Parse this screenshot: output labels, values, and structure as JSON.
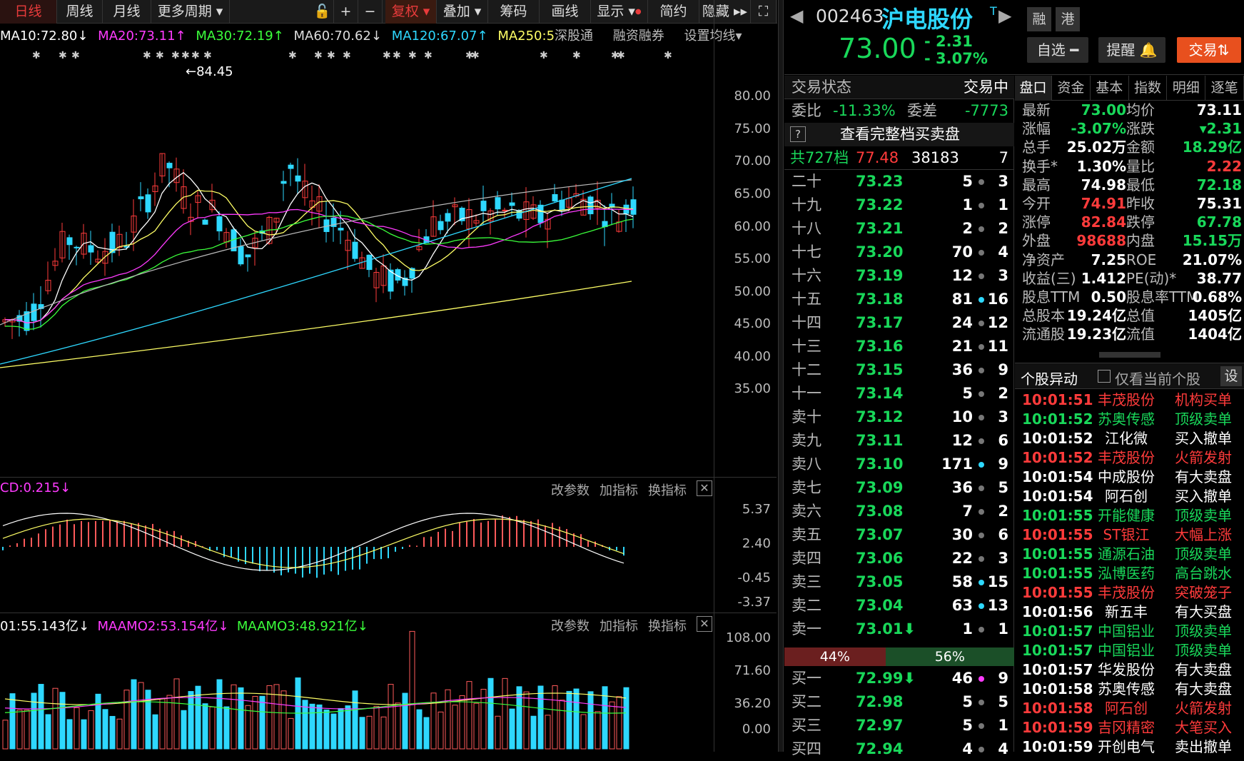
{
  "toolbar": {
    "items": [
      "日线",
      "周线",
      "月线",
      "更多周期",
      "",
      "+",
      "−",
      "复权",
      "叠加",
      "筹码",
      "画线",
      "显示",
      "简约",
      "隐藏",
      "⛶"
    ]
  },
  "ma_line": {
    "ma10": "MA10:72.80↓",
    "ma20": "MA20:73.11↑",
    "ma30": "MA30:72.19↑",
    "ma60": "MA60:70.62↓",
    "ma120": "MA120:67.07↑",
    "ma250": "MA250:5",
    "extra1": "深股通",
    "extra2": "融资融券",
    "extra3": "设置均线▾"
  },
  "kline": {
    "max_label": "84.45",
    "axis": [
      "80.00",
      "75.00",
      "70.00",
      "65.00",
      "60.00",
      "55.00",
      "50.00",
      "45.00",
      "40.00",
      "35.00"
    ]
  },
  "macd": {
    "label": "CD:0.215↓",
    "ctl1": "改参数",
    "ctl2": "加指标",
    "ctl3": "换指标",
    "axis": [
      "5.37",
      "2.40",
      "-0.45",
      "-3.37"
    ]
  },
  "vol": {
    "label1": "01:55.143亿↓",
    "label2": "MAAMO2:53.154亿↓",
    "label3": "MAAMO3:48.921亿↓",
    "ctl1": "改参数",
    "ctl2": "加指标",
    "ctl3": "换指标",
    "axis": [
      "108.00",
      "71.60",
      "36.20",
      "0.00"
    ]
  },
  "stock": {
    "code": "002463",
    "name": "沪电股份",
    "flag": "T",
    "price": "73.00",
    "chg": "- 2.31",
    "pct": "- 3.07%",
    "tag1": "融",
    "tag2": "港",
    "btn_watch": "自选 ━",
    "btn_alert": "提醒 🔔",
    "btn_trade": "交易⇅"
  },
  "book": {
    "status_k": "交易状态",
    "status_v": "交易中",
    "wb_k": "委比",
    "wb_v": "-11.33%",
    "wc_k": "委差",
    "wc_v": "-7773",
    "full": "查看完整档买卖盘",
    "summary_a": "共727档",
    "summary_b": "77.48",
    "summary_c": "38183",
    "summary_d": "7",
    "asks": [
      [
        "二十",
        "73.23",
        "5",
        "3"
      ],
      [
        "十九",
        "73.22",
        "1",
        "1"
      ],
      [
        "十八",
        "73.21",
        "2",
        "2"
      ],
      [
        "十七",
        "73.20",
        "70",
        "4"
      ],
      [
        "十六",
        "73.19",
        "12",
        "3"
      ],
      [
        "十五",
        "73.18",
        "81",
        "16"
      ],
      [
        "十四",
        "73.17",
        "24",
        "12"
      ],
      [
        "十三",
        "73.16",
        "21",
        "11"
      ],
      [
        "十二",
        "73.15",
        "36",
        "9"
      ],
      [
        "十一",
        "73.14",
        "5",
        "2"
      ],
      [
        "卖十",
        "73.12",
        "10",
        "3"
      ],
      [
        "卖九",
        "73.11",
        "12",
        "6"
      ],
      [
        "卖八",
        "73.10",
        "171",
        "9"
      ],
      [
        "卖七",
        "73.09",
        "36",
        "5"
      ],
      [
        "卖六",
        "73.08",
        "7",
        "2"
      ],
      [
        "卖五",
        "73.07",
        "30",
        "6"
      ],
      [
        "卖四",
        "73.06",
        "22",
        "3"
      ],
      [
        "卖三",
        "73.05",
        "58",
        "15"
      ],
      [
        "卖二",
        "73.04",
        "63",
        "13"
      ],
      [
        "卖一",
        "73.01⬇",
        "1",
        "1"
      ]
    ],
    "ratio_l": "44%",
    "ratio_r": "56%",
    "bids": [
      [
        "买一",
        "72.99⬇",
        "46",
        "9"
      ],
      [
        "买二",
        "72.98",
        "5",
        "5"
      ],
      [
        "买三",
        "72.97",
        "5",
        "1"
      ],
      [
        "买四",
        "72.94",
        "4",
        "4"
      ]
    ]
  },
  "tabs": [
    "盘口",
    "资金",
    "基本",
    "指数",
    "明细",
    "逐笔"
  ],
  "quote": [
    [
      "最新",
      "73.00",
      "均价",
      "73.11"
    ],
    [
      "涨幅",
      "-3.07%",
      "涨跌",
      "▾2.31"
    ],
    [
      "总手",
      "25.02万",
      "金额",
      "18.29亿"
    ],
    [
      "换手*",
      "1.30%",
      "量比",
      "2.22"
    ],
    [
      "最高",
      "74.98",
      "最低",
      "72.18"
    ],
    [
      "今开",
      "74.91",
      "昨收",
      "75.31"
    ],
    [
      "涨停",
      "82.84",
      "跌停",
      "67.78"
    ],
    [
      "外盘",
      "98688",
      "内盘",
      "15.15万"
    ],
    [
      "净资产",
      "7.25",
      "ROE",
      "21.07%"
    ],
    [
      "收益(三)",
      "1.412",
      "PE(动)*",
      "38.77"
    ],
    [
      "股息TTM",
      "0.50",
      "股息率TTM",
      "0.68%"
    ],
    [
      "总股本",
      "19.24亿",
      "总值",
      "1405亿"
    ],
    [
      "流通股",
      "19.23亿",
      "流值",
      "1404亿"
    ]
  ],
  "alerts_head": {
    "title": "个股异动",
    "check": "仅看当前个股",
    "set": "设"
  },
  "alerts": [
    [
      "10:01:51",
      "丰茂股份",
      "机构买单",
      "up"
    ],
    [
      "10:01:52",
      "苏奥传感",
      "顶级卖单",
      "dn"
    ],
    [
      "10:01:52",
      "江化微",
      "买入撤单",
      "w"
    ],
    [
      "10:01:52",
      "丰茂股份",
      "火箭发射",
      "up"
    ],
    [
      "10:01:54",
      "中成股份",
      "有大卖盘",
      "w"
    ],
    [
      "10:01:54",
      "阿石创",
      "买入撤单",
      "w"
    ],
    [
      "10:01:55",
      "开能健康",
      "顶级卖单",
      "dn"
    ],
    [
      "10:01:55",
      "ST银江",
      "大幅上涨",
      "up"
    ],
    [
      "10:01:55",
      "通源石油",
      "顶级卖单",
      "dn"
    ],
    [
      "10:01:55",
      "泓博医药",
      "高台跳水",
      "dn"
    ],
    [
      "10:01:55",
      "丰茂股份",
      "突破笼子",
      "up"
    ],
    [
      "10:01:56",
      "新五丰",
      "有大买盘",
      "w"
    ],
    [
      "10:01:57",
      "中国铝业",
      "顶级卖单",
      "dn"
    ],
    [
      "10:01:57",
      "中国铝业",
      "顶级卖单",
      "dn"
    ],
    [
      "10:01:57",
      "华发股份",
      "有大卖盘",
      "w"
    ],
    [
      "10:01:58",
      "苏奥传感",
      "有大卖盘",
      "w"
    ],
    [
      "10:01:58",
      "阿石创",
      "火箭发射",
      "up"
    ],
    [
      "10:01:59",
      "吉冈精密",
      "大笔买入",
      "up"
    ],
    [
      "10:01:59",
      "开创电气",
      "卖出撤单",
      "w"
    ]
  ]
}
